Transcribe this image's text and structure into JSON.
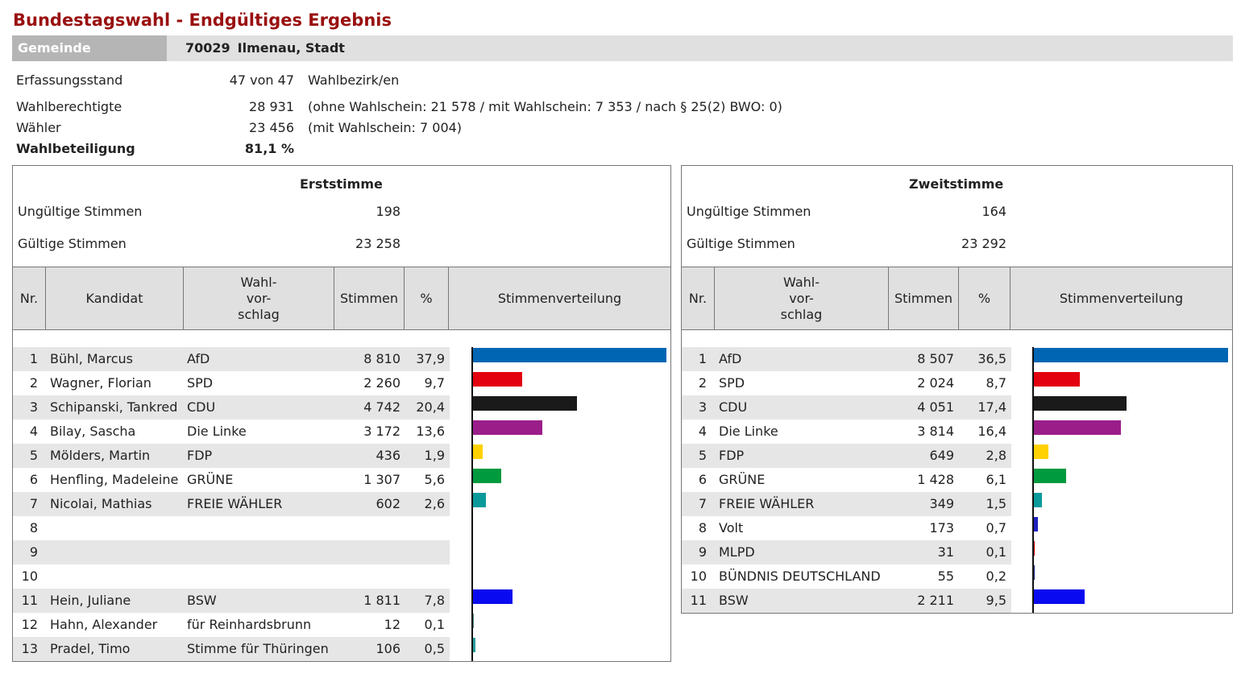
{
  "title": "Bundestagswahl - Endgültiges Ergebnis",
  "gemeinde": {
    "label": "Gemeinde",
    "code": "70029",
    "name": "Ilmenau, Stadt"
  },
  "info": [
    {
      "label": "Erfassungsstand",
      "value": "47 von 47",
      "note": "Wahlbezirk/en"
    },
    {
      "label": "Wahlberechtigte",
      "value": "28 931",
      "note": "(ohne Wahlschein: 21 578 / mit Wahlschein: 7 353 / nach § 25(2) BWO: 0)"
    },
    {
      "label": "Wähler",
      "value": "23 456",
      "note": "(mit Wahlschein: 7 004)"
    },
    {
      "label": "Wahlbeteiligung",
      "value": "81,1 %",
      "note": ""
    }
  ],
  "erststimme": {
    "title": "Erststimme",
    "ungueltig_label": "Ungültige Stimmen",
    "ungueltig": "198",
    "gueltig_label": "Gültige Stimmen",
    "gueltig": "23 258",
    "headers": {
      "nr": "Nr.",
      "kandidat": "Kandidat",
      "wahlvorschlag": "Wahl-\nvor-\nschlag",
      "stimmen": "Stimmen",
      "prozent": "%",
      "verteilung": "Stimmenverteilung"
    },
    "rows": [
      {
        "nr": "1",
        "kandidat": "Bühl, Marcus",
        "partei": "AfD",
        "stimmen": "8 810",
        "prozent": "37,9",
        "pct": 37.9,
        "color": "#0066b3"
      },
      {
        "nr": "2",
        "kandidat": "Wagner, Florian",
        "partei": "SPD",
        "stimmen": "2 260",
        "prozent": "9,7",
        "pct": 9.7,
        "color": "#e3000f"
      },
      {
        "nr": "3",
        "kandidat": "Schipanski, Tankred",
        "partei": "CDU",
        "stimmen": "4 742",
        "prozent": "20,4",
        "pct": 20.4,
        "color": "#1a1a1a"
      },
      {
        "nr": "4",
        "kandidat": "Bilay, Sascha",
        "partei": "Die Linke",
        "stimmen": "3 172",
        "prozent": "13,6",
        "pct": 13.6,
        "color": "#9b1d8a"
      },
      {
        "nr": "5",
        "kandidat": "Mölders, Martin",
        "partei": "FDP",
        "stimmen": "436",
        "prozent": "1,9",
        "pct": 1.9,
        "color": "#ffd100"
      },
      {
        "nr": "6",
        "kandidat": "Henfling, Madeleine",
        "partei": "GRÜNE",
        "stimmen": "1 307",
        "prozent": "5,6",
        "pct": 5.6,
        "color": "#009a3e"
      },
      {
        "nr": "7",
        "kandidat": "Nicolai, Mathias",
        "partei": "FREIE WÄHLER",
        "stimmen": "602",
        "prozent": "2,6",
        "pct": 2.6,
        "color": "#0b9a9a"
      },
      {
        "nr": "8",
        "kandidat": "",
        "partei": "",
        "stimmen": "",
        "prozent": "",
        "pct": 0,
        "color": ""
      },
      {
        "nr": "9",
        "kandidat": "",
        "partei": "",
        "stimmen": "",
        "prozent": "",
        "pct": 0,
        "color": ""
      },
      {
        "nr": "10",
        "kandidat": "",
        "partei": "",
        "stimmen": "",
        "prozent": "",
        "pct": 0,
        "color": ""
      },
      {
        "nr": "11",
        "kandidat": "Hein, Juliane",
        "partei": "BSW",
        "stimmen": "1 811",
        "prozent": "7,8",
        "pct": 7.8,
        "color": "#0a0af0"
      },
      {
        "nr": "12",
        "kandidat": "Hahn, Alexander",
        "partei": "für Reinhardsbrunn",
        "stimmen": "12",
        "prozent": "0,1",
        "pct": 0.1,
        "color": "#4a8a8a"
      },
      {
        "nr": "13",
        "kandidat": "Pradel, Timo",
        "partei": "Stimme für Thüringen",
        "stimmen": "106",
        "prozent": "0,5",
        "pct": 0.5,
        "color": "#2a9a9a"
      }
    ]
  },
  "zweitstimme": {
    "title": "Zweitstimme",
    "ungueltig_label": "Ungültige Stimmen",
    "ungueltig": "164",
    "gueltig_label": "Gültige Stimmen",
    "gueltig": "23 292",
    "headers": {
      "nr": "Nr.",
      "wahlvorschlag": "Wahl-\nvor-\nschlag",
      "stimmen": "Stimmen",
      "prozent": "%",
      "verteilung": "Stimmenverteilung"
    },
    "rows": [
      {
        "nr": "1",
        "partei": "AfD",
        "stimmen": "8 507",
        "prozent": "36,5",
        "pct": 36.5,
        "color": "#0066b3"
      },
      {
        "nr": "2",
        "partei": "SPD",
        "stimmen": "2 024",
        "prozent": "8,7",
        "pct": 8.7,
        "color": "#e3000f"
      },
      {
        "nr": "3",
        "partei": "CDU",
        "stimmen": "4 051",
        "prozent": "17,4",
        "pct": 17.4,
        "color": "#1a1a1a"
      },
      {
        "nr": "4",
        "partei": "Die Linke",
        "stimmen": "3 814",
        "prozent": "16,4",
        "pct": 16.4,
        "color": "#9b1d8a"
      },
      {
        "nr": "5",
        "partei": "FDP",
        "stimmen": "649",
        "prozent": "2,8",
        "pct": 2.8,
        "color": "#ffd100"
      },
      {
        "nr": "6",
        "partei": "GRÜNE",
        "stimmen": "1 428",
        "prozent": "6,1",
        "pct": 6.1,
        "color": "#009a3e"
      },
      {
        "nr": "7",
        "partei": "FREIE WÄHLER",
        "stimmen": "349",
        "prozent": "1,5",
        "pct": 1.5,
        "color": "#0b9a9a"
      },
      {
        "nr": "8",
        "partei": "Volt",
        "stimmen": "173",
        "prozent": "0,7",
        "pct": 0.7,
        "color": "#2020c0"
      },
      {
        "nr": "9",
        "partei": "MLPD",
        "stimmen": "31",
        "prozent": "0,1",
        "pct": 0.1,
        "color": "#c00000"
      },
      {
        "nr": "10",
        "partei": "BÜNDNIS DEUTSCHLAND",
        "stimmen": "55",
        "prozent": "0,2",
        "pct": 0.2,
        "color": "#10208a"
      },
      {
        "nr": "11",
        "partei": "BSW",
        "stimmen": "2 211",
        "prozent": "9,5",
        "pct": 9.5,
        "color": "#0a0af0"
      }
    ]
  }
}
